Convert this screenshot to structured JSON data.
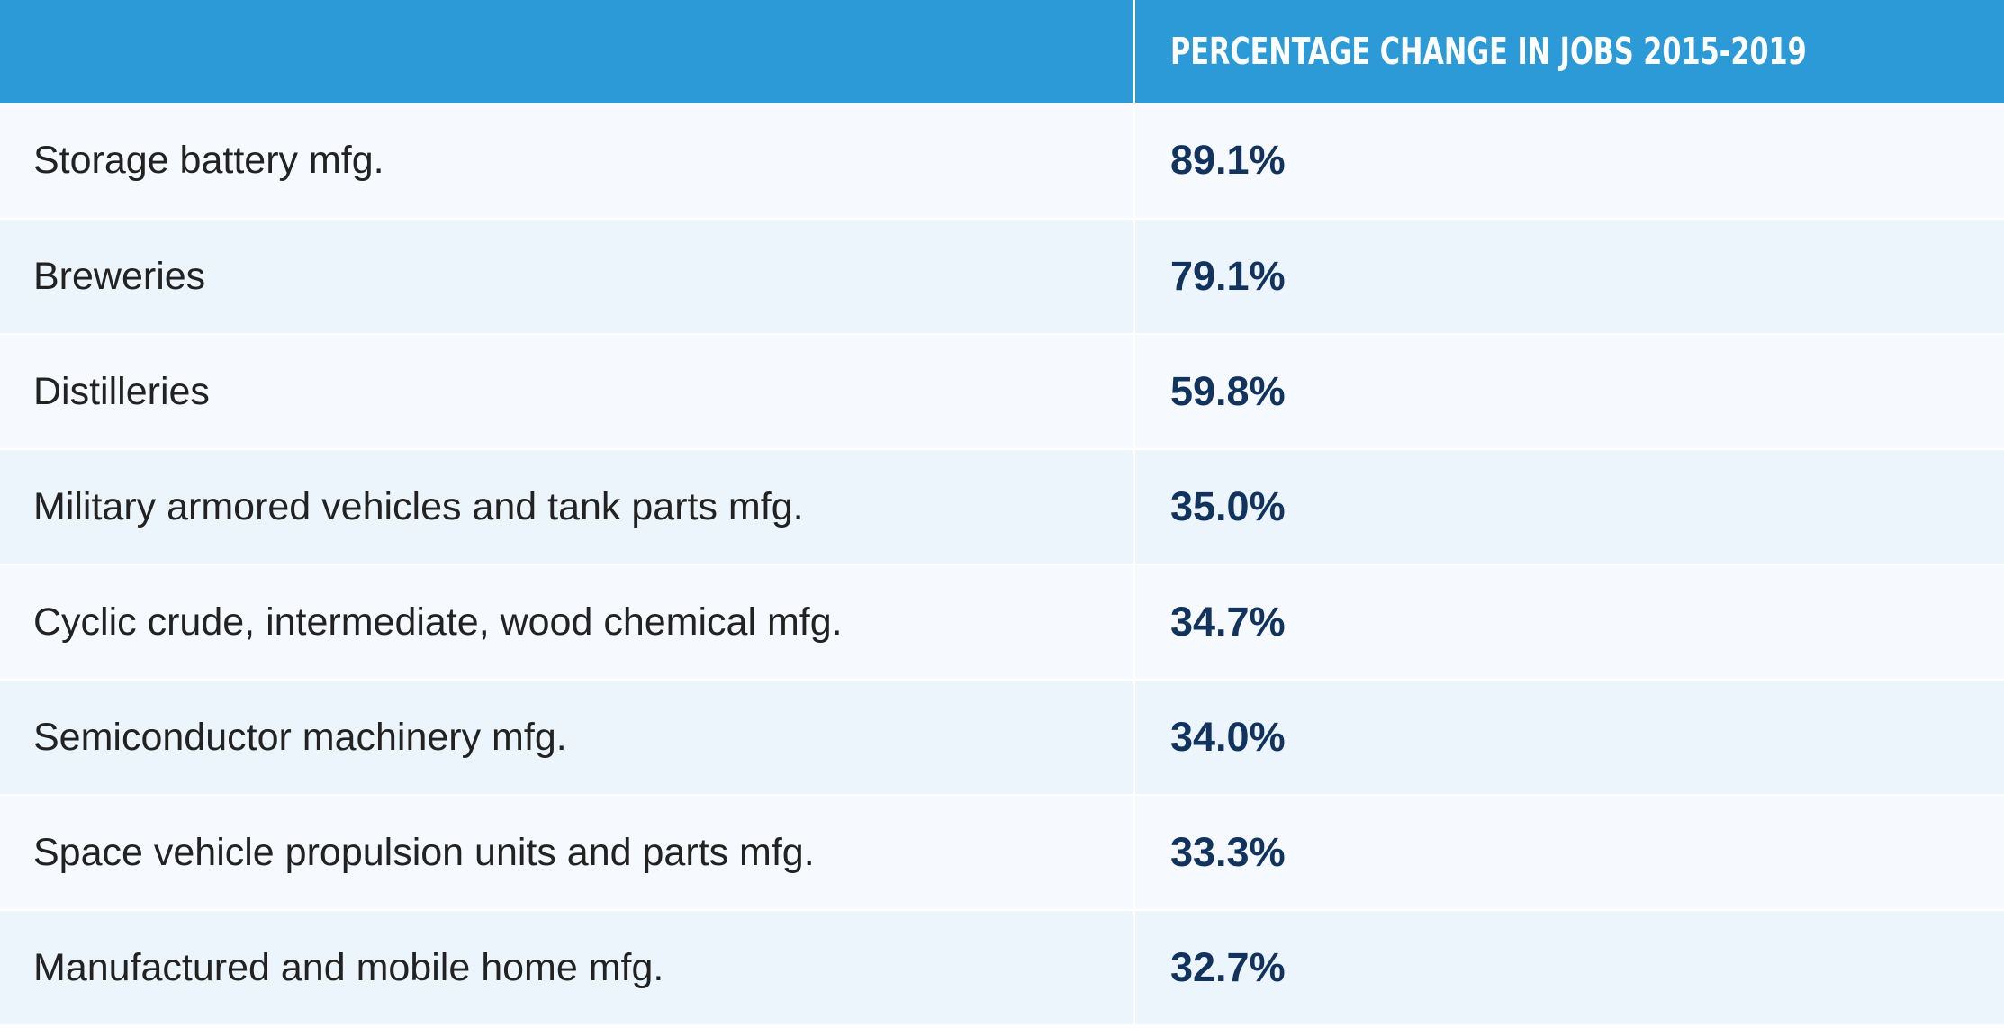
{
  "table": {
    "header": {
      "left": "",
      "right": "PERCENTAGE CHANGE IN JOBS 2015-2019"
    },
    "rows": [
      {
        "label": "Storage battery mfg.",
        "value": "89.1%"
      },
      {
        "label": "Breweries",
        "value": "79.1%"
      },
      {
        "label": "Distilleries",
        "value": "59.8%"
      },
      {
        "label": "Military armored vehicles and tank parts mfg.",
        "value": "35.0%"
      },
      {
        "label": "Cyclic crude, intermediate, wood chemical mfg.",
        "value": "34.7%"
      },
      {
        "label": "Semiconductor machinery mfg.",
        "value": "34.0%"
      },
      {
        "label": "Space vehicle propulsion units and parts mfg.",
        "value": "33.3%"
      },
      {
        "label": "Manufactured and mobile home mfg.",
        "value": "32.7%"
      }
    ]
  },
  "colors": {
    "header_blue": "#2b9ad6",
    "value_navy": "#12335d",
    "row_odd": "#f6f9fe",
    "row_even": "#ecf4fc"
  }
}
